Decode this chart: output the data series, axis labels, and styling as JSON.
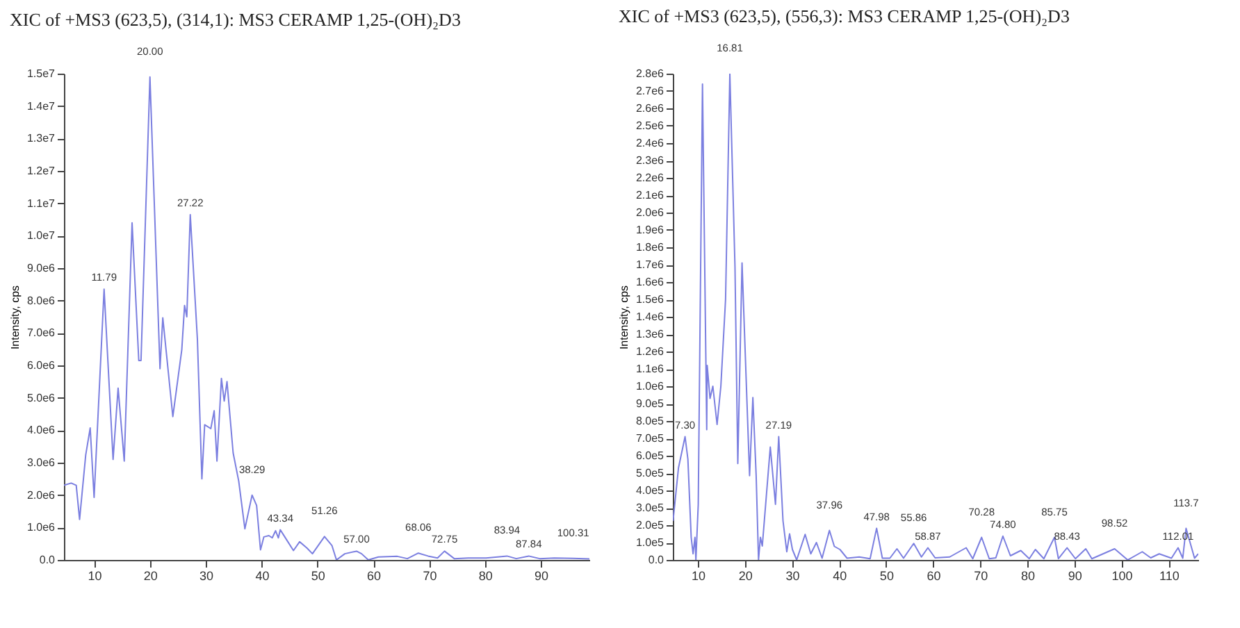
{
  "chart_data": [
    {
      "type": "line",
      "title": "XIC of +MS3 (623,5), (314,1): MS3 CERAMP 1,25-(OH)₂D3",
      "ylabel": "Intensity, cps",
      "xlim": [
        4.6,
        98.7
      ],
      "xticks": [
        10,
        20,
        30,
        40,
        50,
        60,
        70,
        80,
        90
      ],
      "ylim": [
        0,
        15000000
      ],
      "yticks": [
        {
          "value": 0,
          "label": "0.0"
        },
        {
          "value": 1000000,
          "label": "1.0e6"
        },
        {
          "value": 2000000,
          "label": "2.0e6"
        },
        {
          "value": 3000000,
          "label": "3.0e6"
        },
        {
          "value": 4000000,
          "label": "4.0e6"
        },
        {
          "value": 5000000,
          "label": "5.0e6"
        },
        {
          "value": 6000000,
          "label": "6.0e6"
        },
        {
          "value": 7000000,
          "label": "7.0e6"
        },
        {
          "value": 8000000,
          "label": "8.0e6"
        },
        {
          "value": 9000000,
          "label": "9.0e6"
        },
        {
          "value": 10000000,
          "label": "1.0e7"
        },
        {
          "value": 11000000,
          "label": "1.1e7"
        },
        {
          "value": 12000000,
          "label": "1.2e7"
        },
        {
          "value": 13000000,
          "label": "1.3e7"
        },
        {
          "value": 14000000,
          "label": "1.4e7"
        },
        {
          "value": 15000000,
          "label": "1.5e7"
        }
      ],
      "series": [
        {
          "color": "#7b7fe0",
          "x": [
            4.6,
            5.9,
            6.8,
            7.4,
            8.5,
            9.3,
            10.0,
            11.79,
            13.4,
            14.3,
            15.4,
            16.8,
            18.0,
            18.4,
            20.0,
            21.8,
            22.3,
            24.1,
            25.7,
            26.2,
            26.6,
            27.22,
            28.5,
            29.3,
            29.8,
            30.9,
            31.5,
            32.0,
            32.8,
            33.3,
            33.8,
            34.9,
            35.9,
            37.0,
            38.29,
            39.1,
            39.8,
            40.4,
            41.3,
            41.9,
            42.5,
            43.0,
            43.34,
            44.7,
            45.7,
            46.8,
            48.1,
            49.1,
            51.26,
            52.6,
            53.4,
            54.9,
            57.0,
            57.9,
            59.1,
            60.9,
            64.3,
            66.1,
            68.06,
            69.8,
            71.5,
            72.75,
            74.5,
            77.0,
            80.2,
            83.94,
            85.6,
            87.84,
            89.8,
            92.4,
            95.8,
            98.7
          ],
          "values": [
            2300000,
            2370000,
            2300000,
            1250000,
            3240000,
            4070000,
            1930000,
            8350000,
            3100000,
            5300000,
            3050000,
            10400000,
            6150000,
            6150000,
            14900000,
            5900000,
            7470000,
            4420000,
            6480000,
            7850000,
            7500000,
            10650000,
            6800000,
            2500000,
            4170000,
            4050000,
            4600000,
            3050000,
            5600000,
            4900000,
            5500000,
            3300000,
            2430000,
            960000,
            2000000,
            1680000,
            310000,
            710000,
            750000,
            680000,
            900000,
            680000,
            930000,
            560000,
            290000,
            560000,
            370000,
            190000,
            720000,
            440000,
            0,
            190000,
            270000,
            190000,
            0,
            90000,
            110000,
            40000,
            210000,
            120000,
            60000,
            270000,
            40000,
            60000,
            60000,
            120000,
            40000,
            120000,
            40000,
            60000,
            50000,
            30000
          ]
        }
      ],
      "annotations": [
        {
          "text": "11.79",
          "x": 11.79,
          "y": 8350000
        },
        {
          "text": "20.00",
          "x": 20.0,
          "y": 14900000
        },
        {
          "text": "27.22",
          "x": 27.22,
          "y": 10650000
        },
        {
          "text": "38.29",
          "x": 38.29,
          "y": 2000000
        },
        {
          "text": "43.34",
          "x": 43.34,
          "y": 930000
        },
        {
          "text": "51.26",
          "x": 51.26,
          "y": 720000
        },
        {
          "text": "57.00",
          "x": 57.0,
          "y": 270000
        },
        {
          "text": "68.06",
          "x": 68.06,
          "y": 210000
        },
        {
          "text": "72.75",
          "x": 72.75,
          "y": 270000
        },
        {
          "text": "83.94",
          "x": 83.94,
          "y": 120000
        },
        {
          "text": "87.84",
          "x": 87.84,
          "y": 120000
        },
        {
          "text": "100.31",
          "x": 95.8,
          "y": 50000
        }
      ]
    },
    {
      "type": "line",
      "title": "XIC of +MS3 (623,5), (556,3): MS3 CERAMP 1,25-(OH)₂D3",
      "ylabel": "Intensity, cps",
      "xlim": [
        4.7,
        116.3
      ],
      "xticks": [
        10,
        20,
        30,
        40,
        50,
        60,
        70,
        80,
        90,
        100,
        110
      ],
      "ylim": [
        0,
        2800000
      ],
      "yticks": [
        {
          "value": 0,
          "label": "0.0"
        },
        {
          "value": 100000,
          "label": "1.0e5"
        },
        {
          "value": 200000,
          "label": "2.0e5"
        },
        {
          "value": 300000,
          "label": "3.0e5"
        },
        {
          "value": 400000,
          "label": "4.0e5"
        },
        {
          "value": 500000,
          "label": "5.0e5"
        },
        {
          "value": 600000,
          "label": "6.0e5"
        },
        {
          "value": 700000,
          "label": "7.0e5"
        },
        {
          "value": 800000,
          "label": "8.0e5"
        },
        {
          "value": 900000,
          "label": "9.0e5"
        },
        {
          "value": 1000000,
          "label": "1.0e6"
        },
        {
          "value": 1100000,
          "label": "1.1e6"
        },
        {
          "value": 1200000,
          "label": "1.2e6"
        },
        {
          "value": 1300000,
          "label": "1.3e6"
        },
        {
          "value": 1400000,
          "label": "1.4e6"
        },
        {
          "value": 1500000,
          "label": "1.5e6"
        },
        {
          "value": 1600000,
          "label": "1.6e6"
        },
        {
          "value": 1700000,
          "label": "1.7e6"
        },
        {
          "value": 1800000,
          "label": "1.8e6"
        },
        {
          "value": 1900000,
          "label": "1.9e6"
        },
        {
          "value": 2000000,
          "label": "2.0e6"
        },
        {
          "value": 2100000,
          "label": "2.1e6"
        },
        {
          "value": 2200000,
          "label": "2.2e6"
        },
        {
          "value": 2300000,
          "label": "2.3e6"
        },
        {
          "value": 2400000,
          "label": "2.4e6"
        },
        {
          "value": 2500000,
          "label": "2.5e6"
        },
        {
          "value": 2600000,
          "label": "2.6e6"
        },
        {
          "value": 2700000,
          "label": "2.7e6"
        },
        {
          "value": 2800000,
          "label": "2.8e6"
        }
      ],
      "series": [
        {
          "color": "#7b7fe0",
          "x": [
            4.75,
            5.9,
            7.3,
            7.9,
            8.6,
            9.0,
            9.4,
            9.6,
            10.1,
            11.0,
            11.9,
            12.0,
            12.6,
            13.2,
            14.1,
            14.9,
            15.9,
            16.81,
            17.9,
            18.5,
            19.4,
            21.0,
            21.7,
            22.4,
            22.9,
            23.3,
            23.7,
            25.4,
            26.5,
            27.19,
            28.1,
            28.9,
            29.5,
            30.1,
            31.0,
            32.8,
            34.0,
            35.2,
            36.4,
            37.96,
            39.0,
            40.2,
            41.7,
            44.3,
            46.6,
            47.98,
            49.2,
            50.8,
            52.3,
            53.7,
            55.86,
            57.5,
            58.87,
            60.4,
            63.5,
            67.0,
            68.4,
            70.28,
            71.9,
            73.3,
            74.8,
            76.4,
            78.6,
            80.4,
            81.7,
            83.5,
            85.75,
            86.6,
            88.43,
            90.2,
            92.4,
            93.7,
            98.52,
            101.3,
            104.4,
            106.2,
            108.0,
            110.6,
            112.01,
            113.0,
            113.7,
            115.5,
            116.3
          ],
          "values": [
            225000,
            530000,
            710000,
            580000,
            130000,
            35000,
            130000,
            0,
            320000,
            2740000,
            750000,
            1120000,
            930000,
            1000000,
            780000,
            1000000,
            1500000,
            2800000,
            1690000,
            555000,
            1710000,
            485000,
            935000,
            485000,
            0,
            130000,
            80000,
            650000,
            320000,
            710000,
            225000,
            47000,
            150000,
            60000,
            0,
            147000,
            35000,
            100000,
            10000,
            170000,
            78000,
            60000,
            10000,
            17000,
            7000,
            182000,
            10000,
            10000,
            64000,
            10000,
            95000,
            17000,
            70000,
            12000,
            17000,
            70000,
            7000,
            130000,
            7000,
            12000,
            137000,
            24000,
            54000,
            7000,
            60000,
            7000,
            130000,
            7000,
            70000,
            7000,
            64000,
            7000,
            64000,
            0,
            47000,
            12000,
            35000,
            10000,
            70000,
            10000,
            182000,
            10000,
            35000
          ]
        }
      ],
      "annotations": [
        {
          "text": "7.30",
          "x": 7.3,
          "y": 710000
        },
        {
          "text": "16.81",
          "x": 16.81,
          "y": 2800000
        },
        {
          "text": "27.19",
          "x": 27.19,
          "y": 710000
        },
        {
          "text": "37.96",
          "x": 37.96,
          "y": 170000
        },
        {
          "text": "47.98",
          "x": 47.98,
          "y": 182000
        },
        {
          "text": "55.86",
          "x": 55.86,
          "y": 95000
        },
        {
          "text": "58.87",
          "x": 58.87,
          "y": 70000
        },
        {
          "text": "70.28",
          "x": 70.28,
          "y": 130000
        },
        {
          "text": "74.80",
          "x": 74.8,
          "y": 137000
        },
        {
          "text": "85.75",
          "x": 85.75,
          "y": 130000
        },
        {
          "text": "88.43",
          "x": 88.43,
          "y": 70000
        },
        {
          "text": "98.52",
          "x": 98.52,
          "y": 64000
        },
        {
          "text": "112.01",
          "x": 112.01,
          "y": 70000
        },
        {
          "text": "113.7",
          "x": 113.7,
          "y": 182000
        }
      ]
    }
  ]
}
